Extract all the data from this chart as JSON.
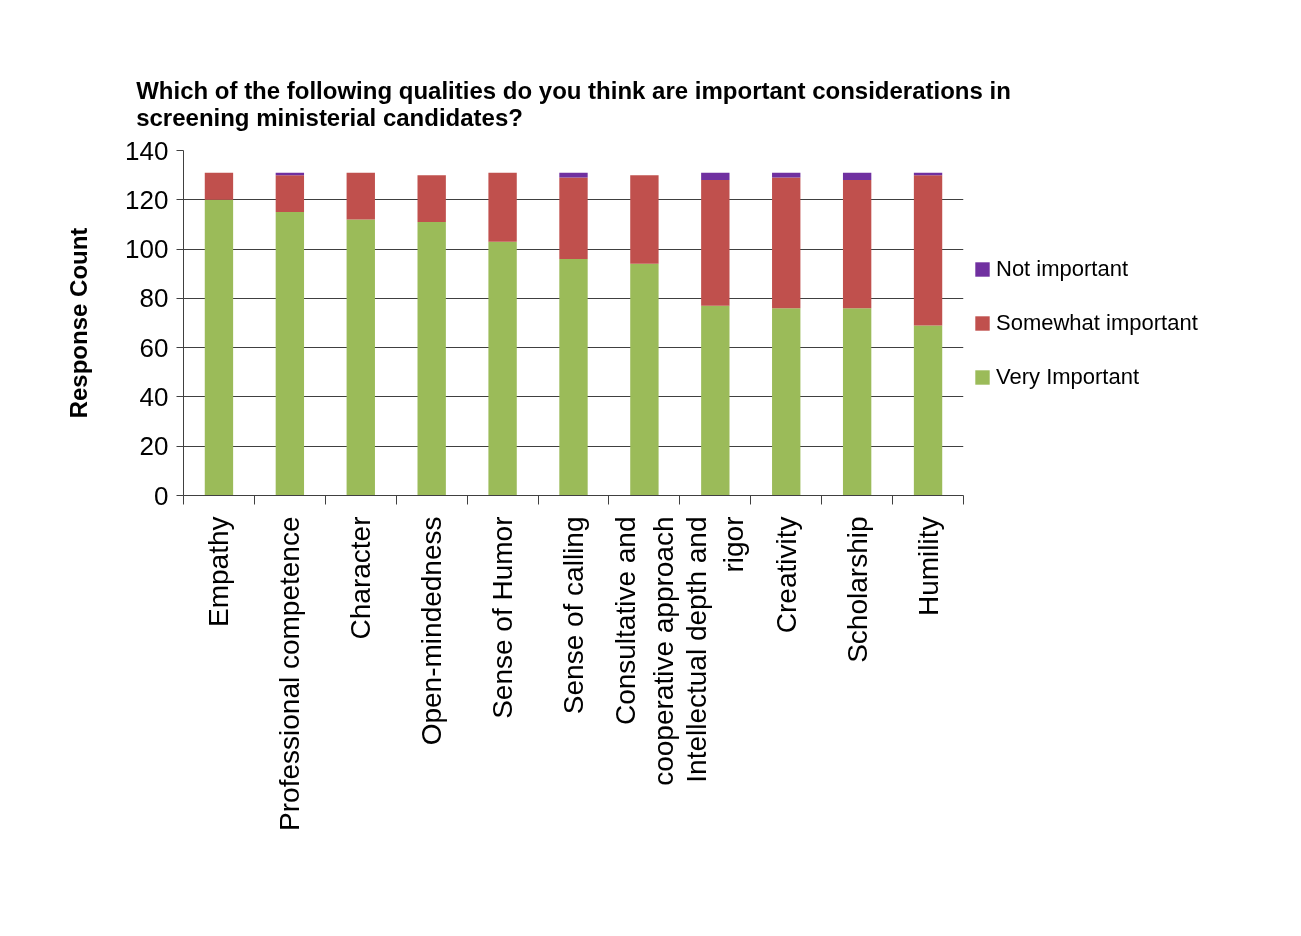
{
  "chart_data": {
    "type": "bar",
    "title": "Which of the following qualities do you think are important considerations in screening ministerial candidates?",
    "ylabel": "Response Count",
    "categories": [
      "Empathy",
      "Professional competence",
      "Character",
      "Open-mindedness",
      "Sense of Humor",
      "Sense of calling",
      "Consultative and cooperative approach",
      "Intellectual depth and rigor",
      "Creativity",
      "Scholarship",
      "Humility"
    ],
    "stacked": true,
    "series": [
      {
        "name": "Very Important",
        "color": "#9bbb59",
        "values": [
          120,
          115,
          112,
          111,
          103,
          96,
          94,
          77,
          76,
          76,
          69
        ]
      },
      {
        "name": "Somewhat important",
        "color": "#c0504d",
        "values": [
          11,
          15,
          19,
          19,
          28,
          33,
          36,
          51,
          53,
          52,
          61
        ]
      },
      {
        "name": "Not important",
        "color": "#7030a0",
        "values": [
          0,
          1,
          0,
          0,
          0,
          2,
          0,
          3,
          2,
          3,
          1
        ]
      }
    ],
    "ylim": [
      0,
      140
    ],
    "yticks": [
      0,
      20,
      40,
      60,
      80,
      100,
      120,
      140
    ],
    "grid": "y",
    "legend": "right"
  }
}
